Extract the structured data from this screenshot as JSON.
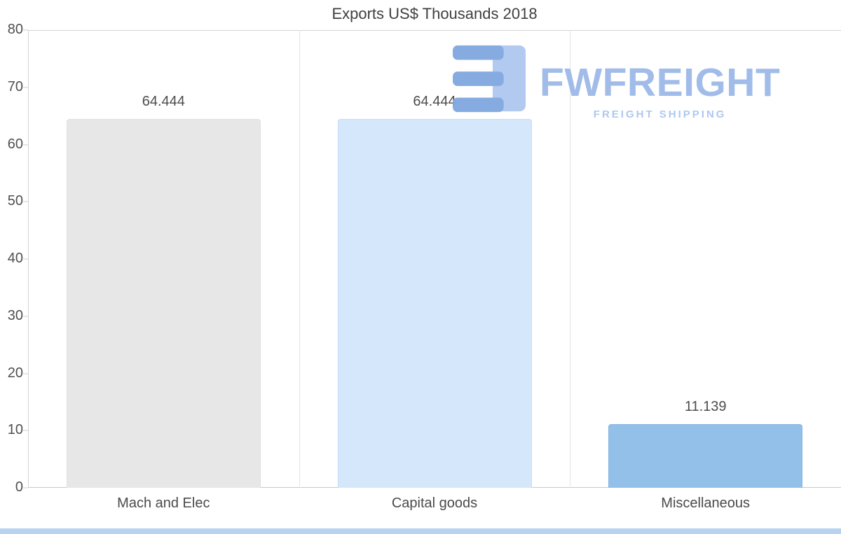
{
  "chart_data": {
    "type": "bar",
    "title": "Exports US$ Thousands 2018",
    "categories": [
      "Mach and Elec",
      "Capital goods",
      "Miscellaneous"
    ],
    "values": [
      64.444,
      64.444,
      11.139
    ],
    "value_labels": [
      "64.444",
      "64.444",
      "11.139"
    ],
    "xlabel": "",
    "ylabel": "",
    "ylim": [
      0,
      80
    ],
    "yticks": [
      0,
      10,
      20,
      30,
      40,
      50,
      60,
      70,
      80
    ],
    "grid": "top boundary line, left axis line, bottom axis line, vertical category separators, left tick marks",
    "legend_position": "none",
    "bar_colors": [
      "#e7e7e7",
      "#d5e8fb",
      "#93c0e8"
    ],
    "bar_borders": [
      "#e0e0e0",
      "#c4ddf6",
      "#86b6e3"
    ]
  },
  "watermark": {
    "brand": "FWFREIGHT",
    "tagline": "FREIGHT SHIPPING",
    "brand_color": "#9cb9e8",
    "tagline_color": "#aac6ef",
    "icon_dark": "#7fa7e0",
    "icon_light": "#aec8ef"
  },
  "colors": {
    "text": "#4a4a4a",
    "axis_line": "#d4d4d4",
    "separator": "#e4e4e4",
    "bottom_strip": "#b7d3ef"
  }
}
